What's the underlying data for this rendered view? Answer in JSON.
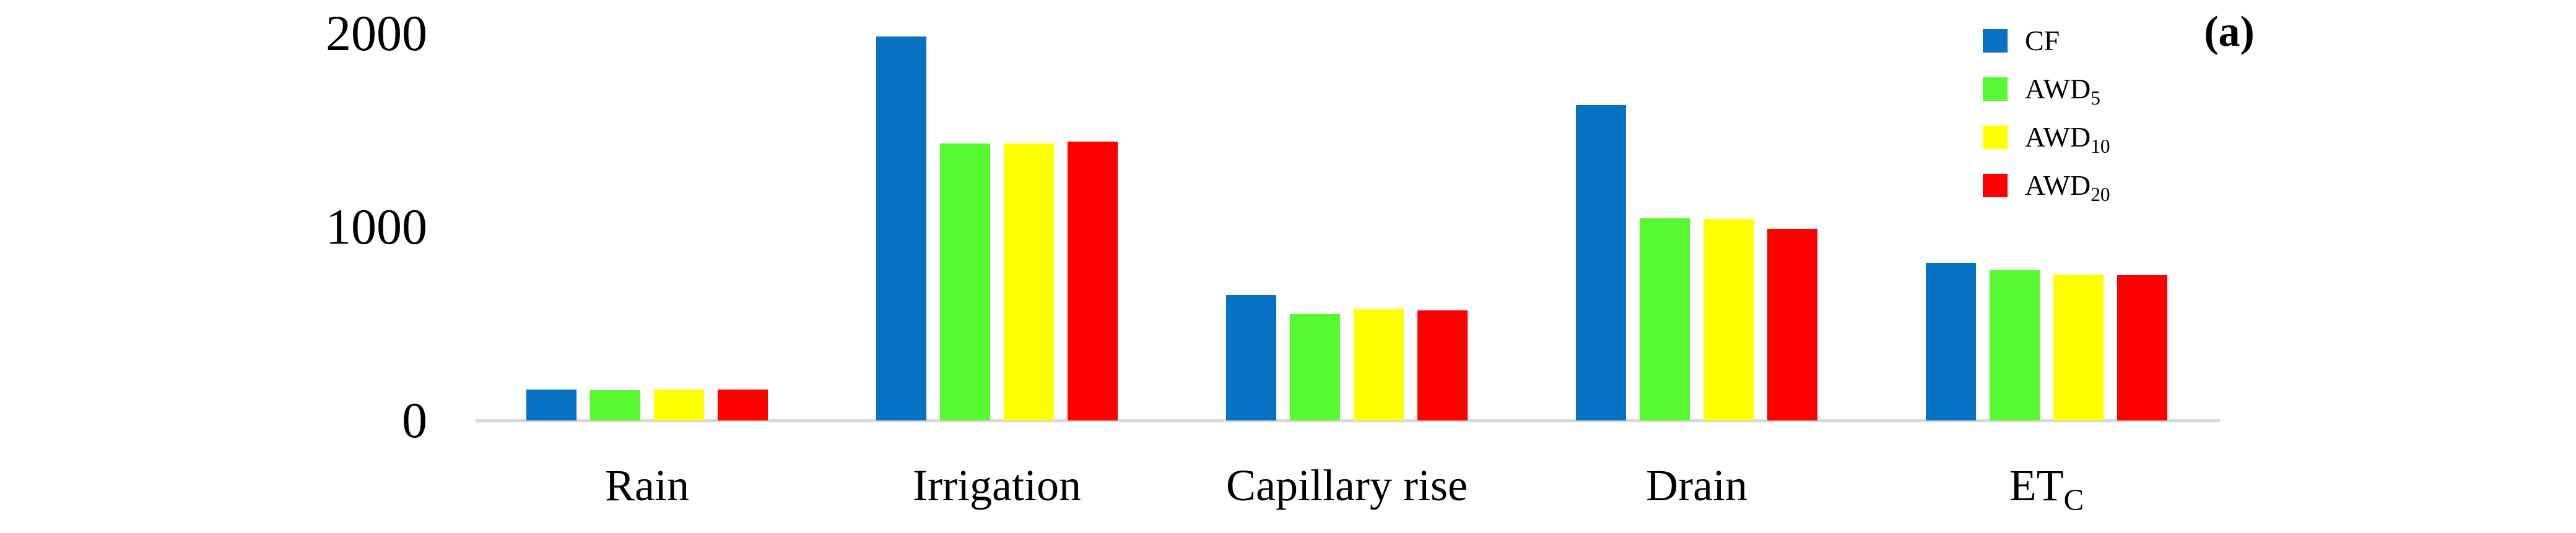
{
  "figure": {
    "panel_label": "(a)"
  },
  "colors": {
    "cf_blue": "#0772C4",
    "awd5_green": "#57FA30",
    "awd10_yellow": "#FFFF00",
    "awd20_red": "#FE0000",
    "axis_line": "#D9D9D9",
    "text": "#000000"
  },
  "chart_data": {
    "type": "bar",
    "title": "",
    "xlabel": "",
    "ylabel": "",
    "categories": [
      {
        "label": "Rain",
        "sub": ""
      },
      {
        "label": "Irrigation",
        "sub": ""
      },
      {
        "label": "Capillary rise",
        "sub": ""
      },
      {
        "label": "Drain",
        "sub": ""
      },
      {
        "label": "ET",
        "sub": "C"
      }
    ],
    "series": [
      {
        "name": "CF",
        "sub": "",
        "color": "#0772C4",
        "values": [
          160,
          1985,
          650,
          1630,
          815
        ]
      },
      {
        "name": "AWD",
        "sub": "5",
        "color": "#57FA30",
        "values": [
          157,
          1430,
          550,
          1045,
          775
        ]
      },
      {
        "name": "AWD",
        "sub": "10",
        "color": "#FFFF00",
        "values": [
          160,
          1430,
          575,
          1040,
          755
        ]
      },
      {
        "name": "AWD",
        "sub": "20",
        "color": "#FE0000",
        "values": [
          160,
          1440,
          570,
          990,
          750
        ]
      }
    ],
    "y_ticks": [
      0,
      1000,
      2000
    ],
    "ylim": [
      0,
      2000
    ],
    "grid": false,
    "legend_position": "top-right"
  }
}
